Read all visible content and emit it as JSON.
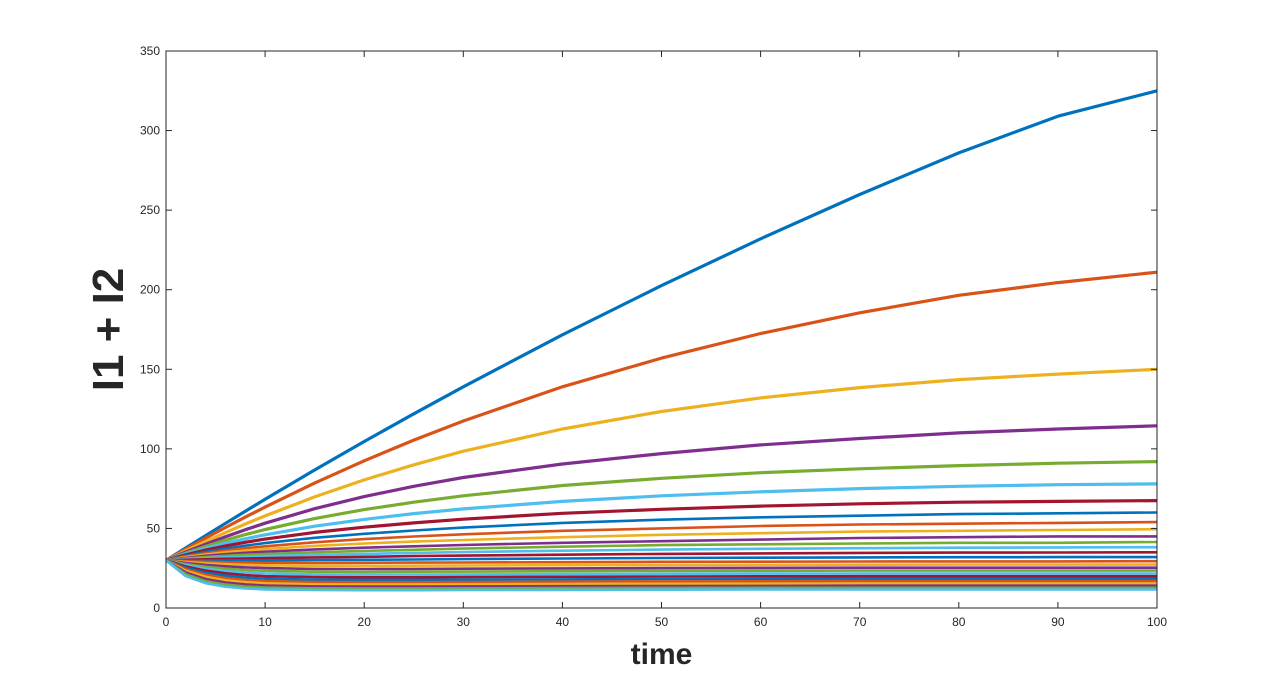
{
  "chart_data": {
    "type": "line",
    "title": "",
    "xlabel": "time",
    "ylabel": "I1 + I2",
    "xlim": [
      0,
      100
    ],
    "ylim": [
      0,
      350
    ],
    "x_ticks": [
      0,
      10,
      20,
      30,
      40,
      50,
      60,
      70,
      80,
      90,
      100
    ],
    "y_ticks": [
      0,
      50,
      100,
      150,
      200,
      250,
      300,
      350
    ],
    "grid": false,
    "legend": "none",
    "initial_value": 30,
    "x": [
      0,
      2,
      4,
      6,
      8,
      10,
      15,
      20,
      25,
      30,
      40,
      50,
      60,
      70,
      80,
      90,
      100
    ],
    "color_cycle": [
      "#0072BD",
      "#D95319",
      "#EDB120",
      "#7E2F8E",
      "#77AC30",
      "#4DBEEE",
      "#A2142F"
    ],
    "series": [
      {
        "values": [
          30,
          37.8,
          45.5,
          53.2,
          60.8,
          68.3,
          86.7,
          104.6,
          122.0,
          139.0,
          171.7,
          202.6,
          232.0,
          259.8,
          286.0,
          309.0,
          325.0
        ]
      },
      {
        "values": [
          30,
          37.0,
          43.9,
          50.6,
          57.1,
          63.4,
          78.5,
          92.5,
          105.5,
          117.5,
          139.0,
          157.0,
          172.5,
          185.5,
          196.5,
          204.5,
          211.0
        ]
      },
      {
        "values": [
          30,
          36.0,
          41.8,
          47.4,
          52.8,
          57.9,
          69.8,
          80.5,
          90.0,
          98.5,
          112.5,
          123.5,
          132.0,
          138.5,
          143.5,
          147.0,
          150.0
        ]
      },
      {
        "values": [
          30,
          35.2,
          40.1,
          44.8,
          49.2,
          53.3,
          62.4,
          70.0,
          76.5,
          82.0,
          90.5,
          97.0,
          102.5,
          106.5,
          110.0,
          112.5,
          114.5
        ]
      },
      {
        "values": [
          30,
          34.5,
          38.7,
          42.6,
          46.1,
          49.3,
          56.2,
          61.8,
          66.5,
          70.5,
          77.0,
          81.5,
          85.0,
          87.5,
          89.5,
          91.0,
          92.0
        ]
      },
      {
        "values": [
          30,
          34.0,
          37.5,
          40.7,
          43.5,
          46.0,
          51.4,
          55.7,
          59.3,
          62.3,
          67.0,
          70.5,
          73.0,
          75.0,
          76.5,
          77.5,
          78.0
        ]
      },
      {
        "values": [
          30,
          33.4,
          36.4,
          39.0,
          41.3,
          43.3,
          47.5,
          50.8,
          53.5,
          55.8,
          59.5,
          62.0,
          64.0,
          65.5,
          66.5,
          67.0,
          67.5
        ]
      },
      {
        "values": [
          30,
          32.9,
          35.3,
          37.4,
          39.2,
          40.8,
          44.1,
          46.6,
          48.7,
          50.5,
          53.5,
          55.5,
          57.0,
          58.0,
          59.0,
          59.5,
          60.0
        ]
      },
      {
        "values": [
          30,
          32.4,
          34.4,
          36.1,
          37.6,
          38.8,
          41.3,
          43.3,
          44.9,
          46.3,
          48.5,
          50.0,
          51.5,
          52.5,
          53.0,
          53.5,
          54.0
        ]
      },
      {
        "values": [
          30,
          32.0,
          33.6,
          35.0,
          36.1,
          37.1,
          39.0,
          40.5,
          41.7,
          42.7,
          44.5,
          46.0,
          47.0,
          48.0,
          48.5,
          49.0,
          49.5
        ]
      },
      {
        "values": [
          30,
          31.5,
          32.8,
          33.8,
          34.7,
          35.4,
          36.8,
          37.9,
          38.8,
          39.6,
          41.0,
          42.0,
          43.0,
          44.0,
          44.5,
          45.0,
          45.0
        ]
      },
      {
        "values": [
          30,
          31.1,
          32.0,
          32.8,
          33.4,
          33.9,
          35.0,
          35.9,
          36.6,
          37.3,
          38.5,
          39.5,
          40.0,
          40.5,
          41.0,
          41.0,
          41.5
        ]
      },
      {
        "values": [
          30,
          30.7,
          31.3,
          31.8,
          32.2,
          32.6,
          33.4,
          34.0,
          34.6,
          35.1,
          36.0,
          36.7,
          37.2,
          37.6,
          37.9,
          38.1,
          38.2
        ]
      },
      {
        "values": [
          30,
          30.3,
          30.6,
          30.9,
          31.1,
          31.3,
          31.8,
          32.2,
          32.6,
          32.9,
          33.5,
          34.0,
          34.3,
          34.6,
          34.8,
          34.9,
          35.0
        ]
      },
      {
        "values": [
          30,
          29.9,
          29.9,
          29.9,
          29.9,
          29.9,
          30.1,
          30.3,
          30.5,
          30.7,
          31.1,
          31.4,
          31.6,
          31.8,
          31.9,
          32.0,
          32.0
        ]
      },
      {
        "values": [
          30,
          29.4,
          29.0,
          28.7,
          28.5,
          28.4,
          28.3,
          28.4,
          28.5,
          28.6,
          28.8,
          29.0,
          29.1,
          29.2,
          29.3,
          29.3,
          29.4
        ]
      },
      {
        "values": [
          30,
          28.9,
          28.1,
          27.5,
          27.1,
          26.8,
          26.5,
          26.5,
          26.6,
          26.7,
          26.9,
          27.0,
          27.1,
          27.2,
          27.3,
          27.3,
          27.3
        ]
      },
      {
        "values": [
          30,
          28.3,
          27.1,
          26.2,
          25.5,
          25.1,
          24.6,
          24.5,
          24.6,
          24.7,
          24.9,
          25.1,
          25.2,
          25.3,
          25.3,
          25.3,
          25.3
        ]
      },
      {
        "values": [
          30,
          27.6,
          25.9,
          24.7,
          23.9,
          23.4,
          22.8,
          22.7,
          22.8,
          22.9,
          23.1,
          23.3,
          23.4,
          23.5,
          23.5,
          23.5,
          23.5
        ]
      },
      {
        "values": [
          30,
          26.9,
          24.7,
          23.3,
          22.3,
          21.7,
          21.1,
          21.0,
          21.0,
          21.1,
          21.3,
          21.5,
          21.6,
          21.7,
          21.7,
          21.7,
          21.7
        ]
      },
      {
        "values": [
          30,
          26.1,
          23.5,
          21.8,
          20.7,
          20.0,
          19.4,
          19.3,
          19.3,
          19.4,
          19.6,
          19.8,
          19.9,
          20.0,
          20.0,
          20.0,
          20.0
        ]
      },
      {
        "values": [
          30,
          25.3,
          22.2,
          20.3,
          19.1,
          18.4,
          17.8,
          17.7,
          17.7,
          17.8,
          18.0,
          18.2,
          18.3,
          18.4,
          18.4,
          18.4,
          18.4
        ]
      },
      {
        "values": [
          30,
          24.4,
          20.9,
          18.8,
          17.6,
          16.9,
          16.3,
          16.2,
          16.2,
          16.3,
          16.5,
          16.7,
          16.8,
          16.9,
          16.9,
          16.9,
          16.9
        ]
      },
      {
        "values": [
          30,
          23.4,
          19.6,
          17.4,
          16.2,
          15.5,
          14.9,
          14.8,
          14.8,
          14.9,
          15.1,
          15.2,
          15.3,
          15.4,
          15.4,
          15.4,
          15.4
        ]
      },
      {
        "values": [
          30,
          22.3,
          18.2,
          16.0,
          14.8,
          14.1,
          13.6,
          13.5,
          13.5,
          13.6,
          13.7,
          13.8,
          13.9,
          14.0,
          14.0,
          14.0,
          14.0
        ]
      },
      {
        "values": [
          30,
          21.2,
          16.9,
          14.7,
          13.5,
          12.9,
          12.4,
          12.3,
          12.3,
          12.4,
          12.5,
          12.6,
          12.7,
          12.7,
          12.7,
          12.7,
          12.7
        ]
      },
      {
        "values": [
          30,
          20.0,
          15.6,
          13.4,
          12.3,
          11.7,
          11.3,
          11.2,
          11.2,
          11.3,
          11.4,
          11.5,
          11.6,
          11.6,
          11.6,
          11.6,
          11.6
        ]
      }
    ]
  }
}
